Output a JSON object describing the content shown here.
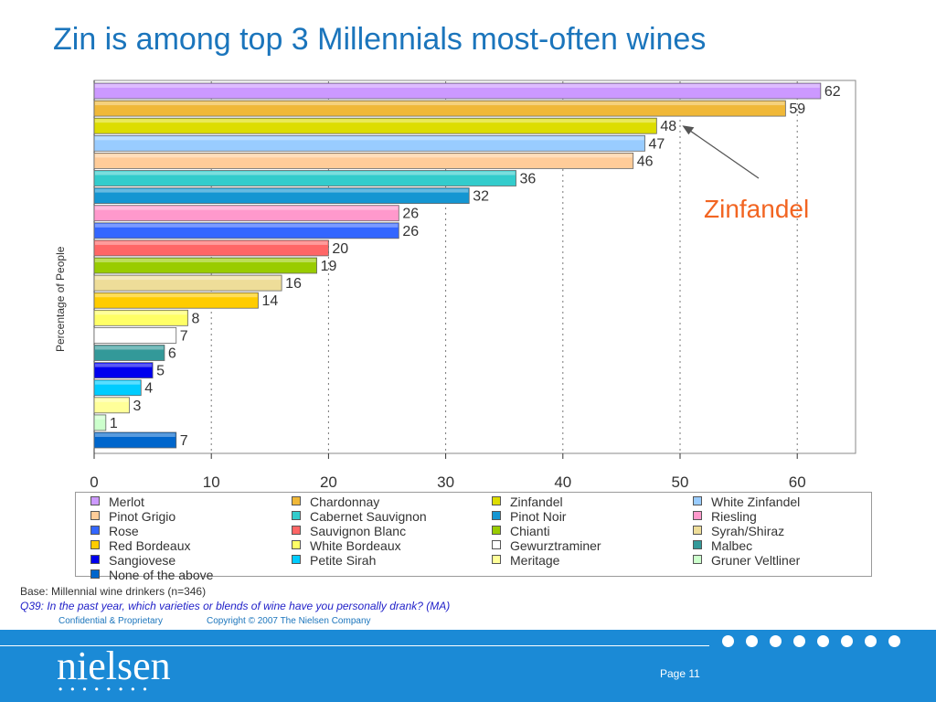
{
  "slide": {
    "title": "Zin is among top 3 Millennials most-often wines",
    "base_note": "Base: Millennial wine drinkers (n=346)",
    "question_note": "Q39: In the past year, which varieties or blends of wine have you personally drank? (MA)",
    "confidential": "Confidential & Proprietary",
    "copyright": "Copyright © 2007 The Nielsen Company",
    "logo_text": "nielsen",
    "logo_dots": "••••••••",
    "page_label": "Page 11",
    "footer_dots": 8
  },
  "chart_data": {
    "type": "bar",
    "orientation": "horizontal",
    "title": "",
    "ylabel": "Percentage of People",
    "xlabel": "",
    "xlim": [
      0,
      65
    ],
    "xticks": [
      0,
      10,
      20,
      30,
      40,
      50,
      60
    ],
    "grid": "vertical dotted",
    "annotation": {
      "text": "Zinfandel",
      "target": "Zinfandel",
      "color": "#f26522"
    },
    "categories": [
      "Merlot",
      "Chardonnay",
      "Zinfandel",
      "White Zinfandel",
      "Pinot Grigio",
      "Cabernet Sauvignon",
      "Pinot Noir",
      "Riesling",
      "Rose",
      "Sauvignon Blanc",
      "Chianti",
      "Syrah/Shiraz",
      "Red Bordeaux",
      "White Bordeaux",
      "Gewurztraminer",
      "Malbec",
      "Sangiovese",
      "Petite Sirah",
      "Meritage",
      "Gruner Veltliner",
      "None of the above"
    ],
    "values": [
      62,
      59,
      48,
      47,
      46,
      36,
      32,
      26,
      26,
      20,
      19,
      16,
      14,
      8,
      7,
      6,
      5,
      4,
      3,
      1,
      7
    ],
    "colors": [
      "#cc99ff",
      "#f0b838",
      "#dddd00",
      "#99ccff",
      "#ffcc99",
      "#33cccc",
      "#1496d2",
      "#ff99cc",
      "#3366ff",
      "#ff6666",
      "#99cc00",
      "#eedd99",
      "#ffcc00",
      "#ffff66",
      "#ffffff",
      "#339999",
      "#0000ee",
      "#00ccff",
      "#ffff99",
      "#ccffcc",
      "#0066cc"
    ],
    "legend_placement": "bottom"
  }
}
